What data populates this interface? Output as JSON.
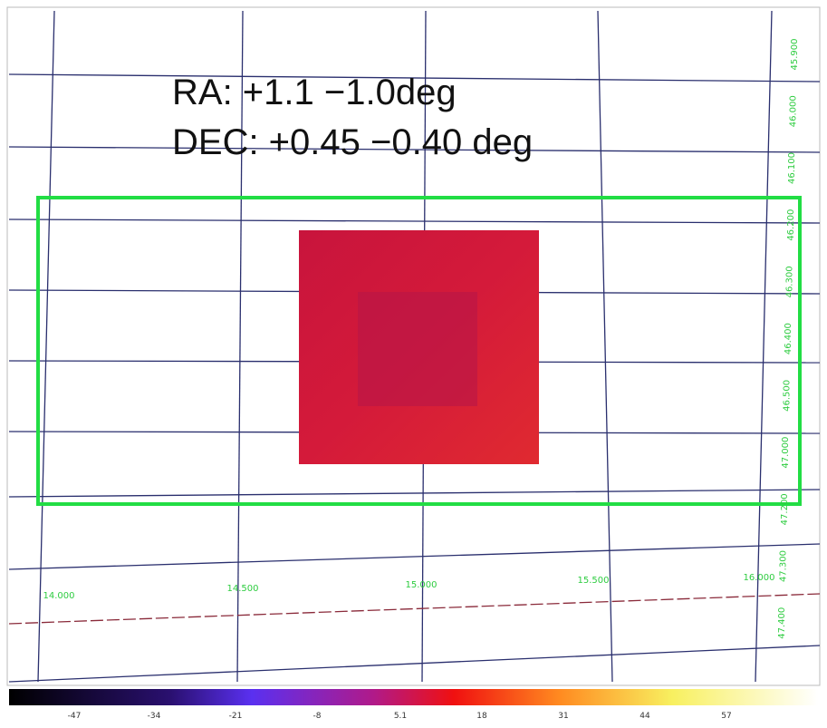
{
  "annotation": {
    "ra": "RA: +1.1 −1.0deg",
    "dec": "DEC: +0.45 −0.40 deg"
  },
  "ra_labels": [
    "14.000",
    "14.500",
    "15.000",
    "15.500",
    "16.000"
  ],
  "dec_labels": [
    "45.900",
    "46.000",
    "46.100",
    "46.200",
    "46.300",
    "46.400",
    "46.500",
    "47.000",
    "47.200",
    "47.300",
    "47.400"
  ],
  "colorbar_labels": [
    "-47",
    "-34",
    "-21",
    "-8",
    "5.1",
    "18",
    "31",
    "44",
    "57"
  ]
}
